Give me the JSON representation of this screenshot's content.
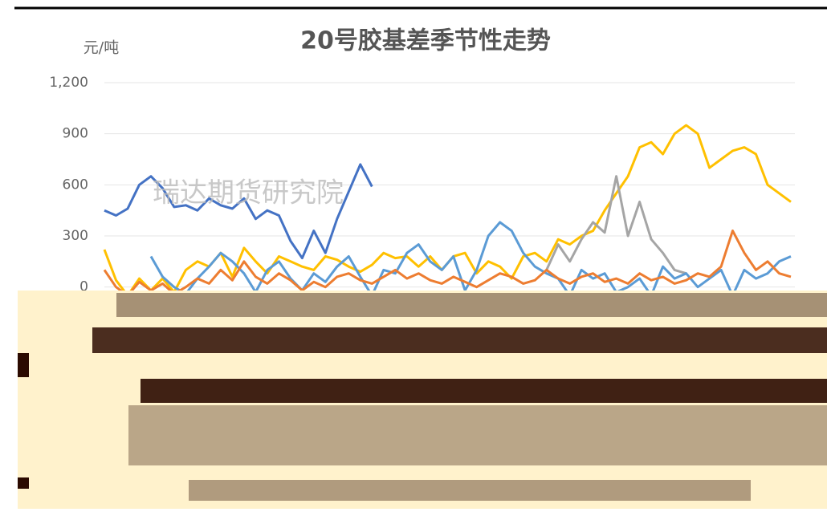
{
  "chart_data": {
    "type": "line",
    "title": "20号胶基差季节性走势",
    "y_unit": "元/吨",
    "watermark": "瑞达期货研究院",
    "ylim": [
      -600,
      1200
    ],
    "yticks": [
      0,
      300,
      600,
      900,
      {
        "value": 1200,
        "label": "1,200"
      }
    ],
    "grid": true,
    "series": [
      {
        "color": "#4472c4",
        "values": [
          450,
          420,
          460,
          600,
          650,
          580,
          470,
          480,
          450,
          520,
          480,
          460,
          520,
          400,
          450,
          420,
          270,
          170,
          330,
          200,
          400,
          560,
          720,
          590,
          null,
          null,
          null,
          null,
          null,
          null,
          null,
          null,
          null,
          null,
          null,
          null,
          null,
          null,
          null,
          null,
          null,
          null,
          null,
          null,
          null,
          null,
          null,
          null,
          null,
          null,
          null,
          null,
          null,
          null,
          null,
          null,
          null,
          null,
          null,
          null
        ]
      },
      {
        "color": "#ffc000",
        "values": [
          220,
          40,
          -50,
          50,
          -20,
          50,
          -30,
          100,
          150,
          120,
          200,
          60,
          230,
          150,
          80,
          180,
          150,
          120,
          100,
          180,
          160,
          120,
          90,
          130,
          200,
          170,
          180,
          120,
          180,
          100,
          180,
          200,
          80,
          150,
          120,
          50,
          180,
          200,
          150,
          280,
          250,
          300,
          330,
          450,
          550,
          650,
          820,
          850,
          780,
          900,
          950,
          900,
          700,
          750,
          800,
          820,
          780,
          600,
          550,
          500
        ]
      },
      {
        "color": "#a5a5a5",
        "values": [
          null,
          null,
          null,
          null,
          null,
          null,
          null,
          null,
          null,
          null,
          null,
          null,
          null,
          null,
          null,
          null,
          null,
          null,
          null,
          null,
          null,
          null,
          null,
          null,
          null,
          null,
          null,
          null,
          null,
          null,
          null,
          null,
          null,
          null,
          null,
          null,
          null,
          null,
          100,
          250,
          150,
          280,
          380,
          320,
          650,
          300,
          500,
          280,
          200,
          100,
          80,
          null,
          null,
          null,
          null,
          null,
          null,
          null,
          null,
          null
        ]
      },
      {
        "color": "#5b9bd5",
        "values": [
          null,
          null,
          null,
          null,
          180,
          60,
          0,
          -40,
          50,
          120,
          200,
          150,
          80,
          -30,
          100,
          150,
          50,
          -20,
          80,
          30,
          120,
          180,
          60,
          -50,
          100,
          80,
          200,
          250,
          150,
          100,
          180,
          -20,
          100,
          300,
          380,
          330,
          200,
          120,
          80,
          50,
          -50,
          100,
          50,
          80,
          -30,
          0,
          50,
          -50,
          120,
          50,
          80,
          0,
          50,
          100,
          -50,
          100,
          50,
          80,
          150,
          180
        ]
      },
      {
        "color": "#ed7d31",
        "values": [
          100,
          0,
          -50,
          30,
          -20,
          20,
          -40,
          0,
          50,
          20,
          100,
          40,
          150,
          60,
          20,
          80,
          40,
          -20,
          30,
          0,
          60,
          80,
          40,
          20,
          60,
          100,
          50,
          80,
          40,
          20,
          60,
          30,
          0,
          40,
          80,
          60,
          20,
          40,
          100,
          50,
          20,
          60,
          80,
          30,
          50,
          20,
          80,
          40,
          60,
          20,
          40,
          80,
          60,
          120,
          330,
          200,
          100,
          150,
          80,
          60
        ]
      }
    ]
  }
}
